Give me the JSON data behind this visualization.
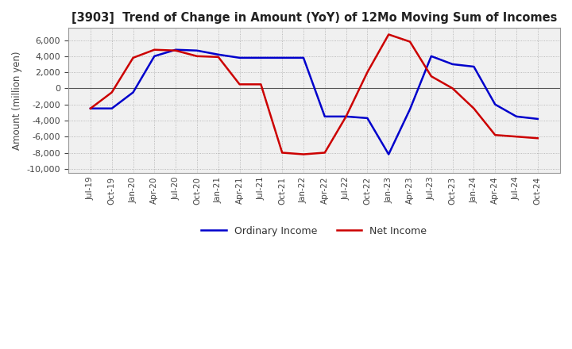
{
  "title": "[3903]  Trend of Change in Amount (YoY) of 12Mo Moving Sum of Incomes",
  "ylabel": "Amount (million yen)",
  "ylim": [
    -10500,
    7500
  ],
  "yticks": [
    6000,
    4000,
    2000,
    0,
    -2000,
    -4000,
    -6000,
    -8000,
    -10000
  ],
  "background_color": "#ffffff",
  "plot_bg_color": "#f0f0f0",
  "grid_color": "#aaaaaa",
  "ordinary_income_color": "#0000cc",
  "net_income_color": "#cc0000",
  "x_labels": [
    "Jul-19",
    "Oct-19",
    "Jan-20",
    "Apr-20",
    "Jul-20",
    "Oct-20",
    "Jan-21",
    "Apr-21",
    "Jul-21",
    "Oct-21",
    "Jan-22",
    "Apr-22",
    "Jul-22",
    "Oct-22",
    "Jan-23",
    "Apr-23",
    "Jul-23",
    "Oct-23",
    "Jan-24",
    "Apr-24",
    "Jul-24",
    "Oct-24"
  ],
  "ordinary_income": [
    -2500,
    -2500,
    -500,
    4000,
    4800,
    4700,
    4200,
    3800,
    3800,
    3800,
    3800,
    -3500,
    -3500,
    -3700,
    -8200,
    -2600,
    4000,
    3000,
    2700,
    -2000,
    -3500,
    -3800
  ],
  "net_income": [
    -2500,
    -500,
    3800,
    4800,
    4700,
    4000,
    3900,
    500,
    500,
    -8000,
    -8200,
    -8000,
    -3500,
    2000,
    6700,
    5800,
    1500,
    0,
    -2500,
    -5800,
    -6000,
    -6200
  ]
}
